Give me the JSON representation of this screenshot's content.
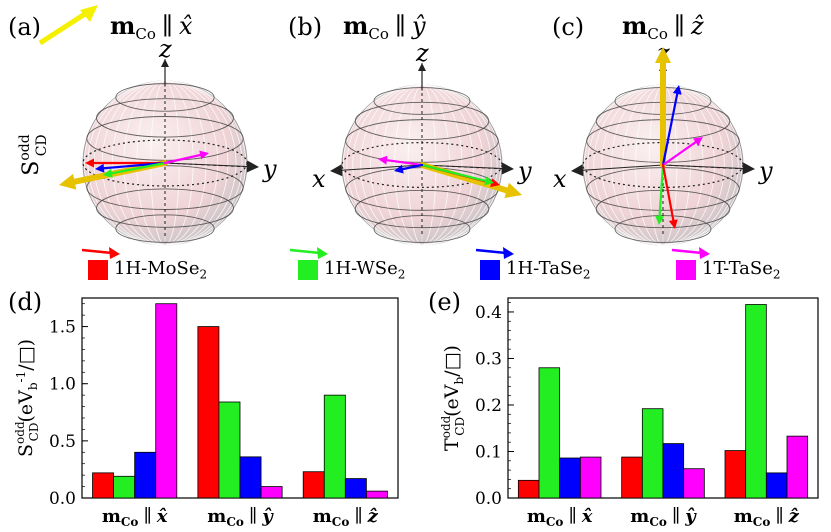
{
  "panels": {
    "a": {
      "label": "(a)",
      "title_main": "m",
      "title_sub": "Co",
      "title_rel": "∥",
      "title_axis": "x̂"
    },
    "b": {
      "label": "(b)",
      "title_main": "m",
      "title_sub": "Co",
      "title_rel": "∥",
      "title_axis": "ŷ"
    },
    "c": {
      "label": "(c)",
      "title_main": "m",
      "title_sub": "Co",
      "title_rel": "∥",
      "title_axis": "ẑ"
    },
    "d": {
      "label": "(d)"
    },
    "e": {
      "label": "(e)"
    }
  },
  "sphere_ylabel": {
    "main": "S",
    "sup": "odd",
    "sub": "CD"
  },
  "axis_letters": {
    "x": "x",
    "y": "y",
    "z": "z"
  },
  "legend": [
    {
      "name": "1H-MoSe",
      "sub": "2",
      "color": "#ff0000"
    },
    {
      "name": "1H-WSe",
      "sub": "2",
      "color": "#22ee22"
    },
    {
      "name": "1H-TaSe",
      "sub": "2",
      "color": "#0000ff"
    },
    {
      "name": "1T-TaSe",
      "sub": "2",
      "color": "#ff00ff"
    }
  ],
  "colors": {
    "MoSe2": "#ff0000",
    "WSe2": "#22ee22",
    "TaSe2_1H": "#0000ff",
    "TaSe2_1T": "#ff00ff",
    "magnetization_arrow": "#e6c200",
    "sphere": "#f3d9db"
  },
  "chart_data": [
    {
      "type": "bar",
      "ylabel": "S_CD^odd(eV_b^-1/□)",
      "ylabel_parts": {
        "main": "S",
        "sup": "odd",
        "sub": "CD",
        "unit_pre": "(eV",
        "unit_sub": "b",
        "unit_sup": "-1",
        "unit_post": "/□)"
      },
      "categories": [
        "mCo ∥ x̂",
        "mCo ∥ ŷ",
        "mCo ∥ ẑ"
      ],
      "category_axes": [
        "x̂",
        "ŷ",
        "ẑ"
      ],
      "ylim": [
        0,
        1.75
      ],
      "yticks": [
        0.0,
        0.5,
        1.0,
        1.5
      ],
      "ytick_labels": [
        "0.0",
        "0.5",
        "1.0",
        "1.5"
      ],
      "series": [
        {
          "values": [
            0.22,
            1.5,
            0.23
          ]
        },
        {
          "values": [
            0.19,
            0.84,
            0.9
          ]
        },
        {
          "values": [
            0.4,
            0.36,
            0.17
          ]
        },
        {
          "values": [
            1.7,
            0.1,
            0.06
          ]
        }
      ]
    },
    {
      "type": "bar",
      "ylabel": "T_CD^odd(eV_b/□)",
      "ylabel_parts": {
        "main": "T",
        "sup": "odd",
        "sub": "CD",
        "unit_pre": "(eV",
        "unit_sub": "b",
        "unit_sup": "",
        "unit_post": "/□)"
      },
      "categories": [
        "mCo ∥ x̂",
        "mCo ∥ ŷ",
        "mCo ∥ ẑ"
      ],
      "category_axes": [
        "x̂",
        "ŷ",
        "ẑ"
      ],
      "ylim": [
        0,
        0.43
      ],
      "yticks": [
        0.0,
        0.1,
        0.2,
        0.3,
        0.4
      ],
      "ytick_labels": [
        "0.0",
        "0.1",
        "0.2",
        "0.3",
        "0.4"
      ],
      "series": [
        {
          "values": [
            0.038,
            0.088,
            0.102
          ]
        },
        {
          "values": [
            0.28,
            0.192,
            0.416
          ]
        },
        {
          "values": [
            0.086,
            0.117,
            0.054
          ]
        },
        {
          "values": [
            0.088,
            0.063,
            0.133
          ]
        }
      ]
    }
  ]
}
